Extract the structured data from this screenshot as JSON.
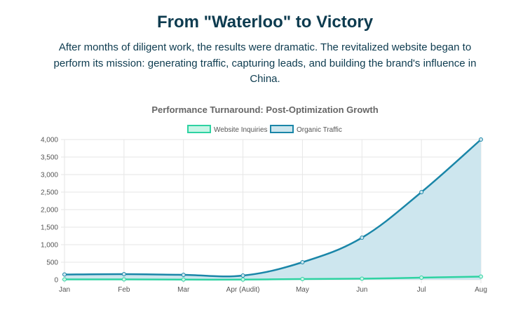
{
  "header": {
    "title": "From \"Waterloo\" to Victory",
    "intro": "After months of diligent work, the results were dramatic. The revitalized website began to perform its mission: generating traffic, capturing leads, and building the brand's influence in China."
  },
  "colors": {
    "inquiries_line": "#2ed3a2",
    "inquiries_fill": "#c8f5e6",
    "traffic_line": "#1a86a8",
    "traffic_fill": "#cde6ee",
    "grid": "#e6e6e6",
    "text": "#555555"
  },
  "chart_data": {
    "type": "line",
    "title": "Performance Turnaround: Post-Optimization Growth",
    "categories": [
      "Jan",
      "Feb",
      "Mar",
      "Apr (Audit)",
      "May",
      "Jun",
      "Jul",
      "Aug"
    ],
    "ylim": [
      0,
      4000
    ],
    "yticks": [
      "0",
      "500",
      "1,000",
      "1,500",
      "2,000",
      "2,500",
      "3,000",
      "3,500",
      "4,000"
    ],
    "ytick_values": [
      0,
      500,
      1000,
      1500,
      2000,
      2500,
      3000,
      3500,
      4000
    ],
    "grid": true,
    "legend_position": "top",
    "series": [
      {
        "name": "Website Inquiries",
        "values": [
          10,
          10,
          5,
          5,
          20,
          30,
          60,
          90
        ],
        "filled": false
      },
      {
        "name": "Organic Traffic",
        "values": [
          150,
          160,
          140,
          120,
          500,
          1200,
          2500,
          4000
        ],
        "filled": true
      }
    ]
  }
}
